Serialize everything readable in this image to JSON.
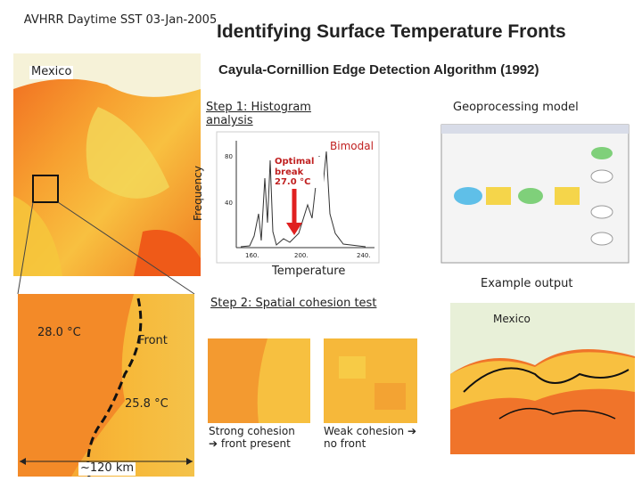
{
  "header": {
    "map_title": "AVHRR Daytime SST 03-Jan-2005",
    "title": "Identifying Surface Temperature Fronts",
    "subtitle": "Cayula-Cornillion Edge Detection Algorithm (1992)"
  },
  "map_label": "Mexico",
  "step1": {
    "title": "Step 1: Histogram analysis",
    "y_label": "Frequency",
    "x_label": "Temperature",
    "optimal_break": "Optimal break 27.0 °C",
    "bimodal": "Bimodal",
    "xticks": [
      "160.",
      "200.",
      "240."
    ],
    "yticks": [
      "80",
      "40"
    ]
  },
  "model": {
    "title": "Geoprocessing model"
  },
  "zoom": {
    "warm": "28.0 °C",
    "front": "Front",
    "cool": "25.8 °C",
    "scale": "~120 km"
  },
  "step2": {
    "title": "Step 2: Spatial cohesion test",
    "strong": "Strong cohesion ➔ front present",
    "weak": "Weak cohesion ➔ no front"
  },
  "output": {
    "title": "Example output",
    "map_label": "Mexico"
  }
}
